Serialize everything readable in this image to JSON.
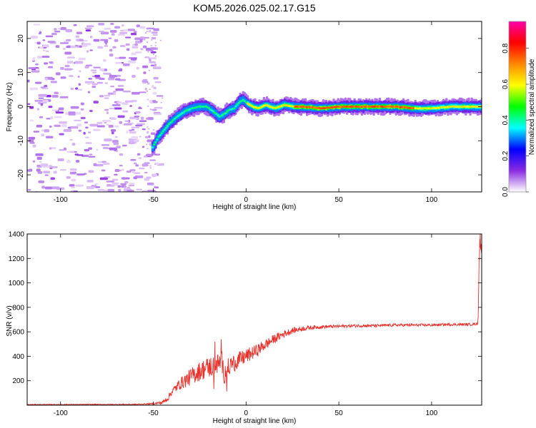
{
  "title": "KOM5.2026.025.02.17.G15",
  "chart_data": [
    {
      "type": "heatmap",
      "name": "spectrogram",
      "xlabel": "Height of straight line (km)",
      "ylabel": "Frequency (Hz)",
      "xlim": [
        -118,
        127
      ],
      "ylim": [
        -25,
        25
      ],
      "xticks": [
        -100,
        -50,
        0,
        50,
        100
      ],
      "yticks": [
        -20,
        -10,
        0,
        10,
        20
      ],
      "ridge": {
        "x": [
          -51,
          -48,
          -45,
          -42,
          -38,
          -34,
          -30,
          -26,
          -22,
          -18,
          -15,
          -12,
          -10,
          -7,
          -4,
          -2,
          0,
          3,
          6,
          10,
          15,
          20,
          25,
          30,
          40,
          50,
          60,
          70,
          80,
          90,
          100,
          110,
          120,
          127
        ],
        "y": [
          -12,
          -9,
          -7,
          -5,
          -3,
          -1.5,
          -0.5,
          0,
          0,
          -1.5,
          -3,
          -2,
          -1,
          -0.5,
          1.5,
          2,
          1,
          0,
          -0.5,
          0.5,
          -0.5,
          0.5,
          0,
          0,
          -0.5,
          0,
          0,
          0,
          0,
          -0.5,
          -0.5,
          0,
          0,
          0
        ]
      },
      "colorbar": {
        "label": "Normalized spectral amplitude",
        "ticks": [
          0.0,
          0.2,
          0.4,
          0.6,
          0.8
        ],
        "range": [
          0,
          0.95
        ],
        "colors": [
          "#ffffff",
          "#8a2be2",
          "#0000ff",
          "#00ffff",
          "#00ff00",
          "#ffff00",
          "#ff8800",
          "#ff0000",
          "#ff00aa"
        ]
      }
    },
    {
      "type": "line",
      "name": "snr",
      "xlabel": "Height of straight line (km)",
      "ylabel": "SNR (v/v)",
      "xlim": [
        -118,
        127
      ],
      "ylim": [
        0,
        1400
      ],
      "xticks": [
        -100,
        -50,
        0,
        50,
        100
      ],
      "yticks": [
        200,
        400,
        600,
        800,
        1000,
        1200,
        1400
      ],
      "color": "#e8302a",
      "envelope": {
        "x": [
          -118,
          -60,
          -50,
          -45,
          -42,
          -40,
          -38,
          -36,
          -34,
          -30,
          -26,
          -22,
          -18,
          -15,
          -13,
          -12,
          -10,
          -8,
          -5,
          0,
          5,
          10,
          15,
          20,
          25,
          30,
          35,
          40,
          50,
          60,
          70,
          80,
          90,
          100,
          110,
          120,
          125
        ],
        "y": [
          5,
          6,
          12,
          22,
          60,
          110,
          140,
          170,
          190,
          230,
          270,
          300,
          320,
          340,
          360,
          250,
          300,
          330,
          360,
          400,
          440,
          490,
          540,
          580,
          610,
          625,
          635,
          640,
          645,
          650,
          650,
          655,
          655,
          655,
          660,
          660,
          665
        ]
      },
      "noise": {
        "x": [
          -118,
          -50,
          -40,
          -30,
          -20,
          -10,
          0,
          10,
          20,
          30,
          40,
          60,
          90,
          125
        ],
        "amp": [
          3,
          5,
          30,
          70,
          90,
          80,
          60,
          45,
          30,
          20,
          14,
          12,
          11,
          11
        ]
      },
      "spike": {
        "x": [
          125,
          125.6,
          126.2,
          126.8,
          127
        ],
        "y": [
          660,
          1180,
          1380,
          1250,
          1300
        ]
      }
    }
  ]
}
